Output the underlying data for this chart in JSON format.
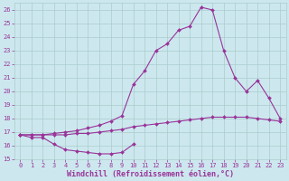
{
  "xlabel": "Windchill (Refroidissement éolien,°C)",
  "background_color": "#cce8ee",
  "grid_color": "#aacccc",
  "line_color": "#993399",
  "x": [
    0,
    1,
    2,
    3,
    4,
    5,
    6,
    7,
    8,
    9,
    10,
    11,
    12,
    13,
    14,
    15,
    16,
    17,
    18,
    19,
    20,
    21,
    22,
    23
  ],
  "line1_y": [
    16.8,
    16.6,
    16.6,
    16.1,
    15.7,
    15.6,
    15.5,
    15.4,
    15.4,
    15.5,
    16.1,
    null,
    null,
    null,
    null,
    null,
    null,
    null,
    null,
    null,
    null,
    null,
    null,
    null
  ],
  "line2_y": [
    16.8,
    16.8,
    16.8,
    16.8,
    16.8,
    16.9,
    16.9,
    17.0,
    17.1,
    17.2,
    17.4,
    17.5,
    17.6,
    17.7,
    17.8,
    17.9,
    18.0,
    18.1,
    18.1,
    18.1,
    18.1,
    18.0,
    17.9,
    17.8
  ],
  "line3_y": [
    16.8,
    16.8,
    16.8,
    16.9,
    17.0,
    17.1,
    17.3,
    17.5,
    17.8,
    18.2,
    20.5,
    21.5,
    23.0,
    23.5,
    24.5,
    24.8,
    26.2,
    26.0,
    23.0,
    21.0,
    20.0,
    20.8,
    19.5,
    18.0
  ],
  "ylim": [
    15,
    26.5
  ],
  "xlim": [
    -0.5,
    23.5
  ],
  "yticks": [
    15,
    16,
    17,
    18,
    19,
    20,
    21,
    22,
    23,
    24,
    25,
    26
  ],
  "xticks": [
    0,
    1,
    2,
    3,
    4,
    5,
    6,
    7,
    8,
    9,
    10,
    11,
    12,
    13,
    14,
    15,
    16,
    17,
    18,
    19,
    20,
    21,
    22,
    23
  ],
  "tick_fontsize": 5.0,
  "xlabel_fontsize": 6.0,
  "marker": "D",
  "marker_size": 2.0,
  "line_width": 0.8
}
